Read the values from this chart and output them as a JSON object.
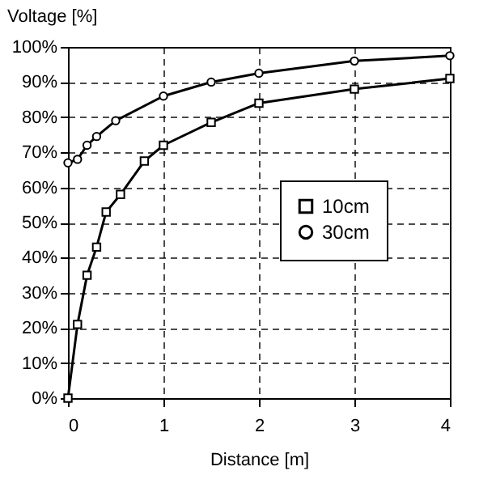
{
  "chart_data": {
    "type": "line",
    "xlabel": "Distance [m]",
    "ylabel": "Voltage [%]",
    "series": [
      {
        "name": "10cm",
        "color": "#000000",
        "marker": "square",
        "x": [
          0,
          0.1,
          0.2,
          0.3,
          0.4,
          0.55,
          0.8,
          1,
          1.5,
          2,
          3,
          4
        ],
        "values": [
          0,
          21,
          35,
          43,
          53,
          58,
          67.5,
          72,
          78.5,
          84,
          88,
          91
        ]
      },
      {
        "name": "30cm",
        "color": "#000000",
        "marker": "circle",
        "x": [
          0,
          0.1,
          0.2,
          0.3,
          0.5,
          1,
          1.5,
          2,
          3,
          4
        ],
        "values": [
          67,
          68,
          72,
          74.5,
          79,
          86,
          90,
          92.5,
          96,
          97.5
        ]
      }
    ],
    "xlim": [
      0,
      4
    ],
    "xticks": [
      0,
      1,
      2,
      3,
      4
    ],
    "ylim": [
      0,
      100
    ],
    "yticks": [
      {
        "value": 0,
        "label": "0%"
      },
      {
        "value": 10,
        "label": "10%"
      },
      {
        "value": 20,
        "label": "20%"
      },
      {
        "value": 30,
        "label": "30%"
      },
      {
        "value": 40,
        "label": "40%"
      },
      {
        "value": 50,
        "label": "50%"
      },
      {
        "value": 60,
        "label": "60%"
      },
      {
        "value": 70,
        "label": "70%"
      },
      {
        "value": 80,
        "label": "80%"
      },
      {
        "value": 90,
        "label": "90%"
      },
      {
        "value": 100,
        "label": "100%"
      }
    ],
    "grid": true,
    "legend": "right",
    "line_style": "solid"
  }
}
